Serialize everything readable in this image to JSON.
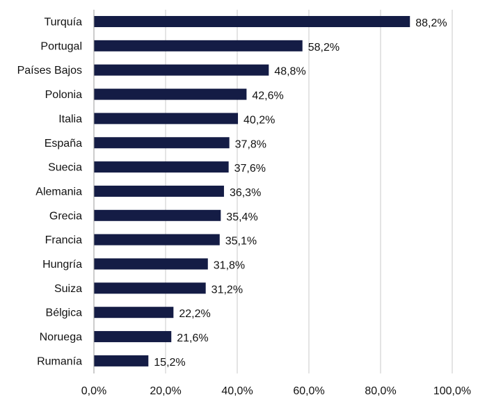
{
  "chart_data": {
    "type": "bar",
    "orientation": "horizontal",
    "categories": [
      "Turquía",
      "Portugal",
      "Países Bajos",
      "Polonia",
      "Italia",
      "España",
      "Suecia",
      "Alemania",
      "Grecia",
      "Francia",
      "Hungría",
      "Suiza",
      "Bélgica",
      "Noruega",
      "Rumanía"
    ],
    "values": [
      88.2,
      58.2,
      48.8,
      42.6,
      40.2,
      37.8,
      37.6,
      36.3,
      35.4,
      35.1,
      31.8,
      31.2,
      22.2,
      21.6,
      15.2
    ],
    "value_labels": [
      "88,2%",
      "58,2%",
      "48,8%",
      "42,6%",
      "40,2%",
      "37,8%",
      "37,6%",
      "36,3%",
      "35,4%",
      "35,1%",
      "31,8%",
      "31,2%",
      "22,2%",
      "21,6%",
      "15,2%"
    ],
    "x_ticks": [
      "0,0%",
      "20,0%",
      "40,0%",
      "60,0%",
      "80,0%",
      "100,0%"
    ],
    "xlim": [
      0,
      100
    ],
    "grid": true,
    "bar_color": "#141c45",
    "title": "",
    "xlabel": "",
    "ylabel": ""
  }
}
